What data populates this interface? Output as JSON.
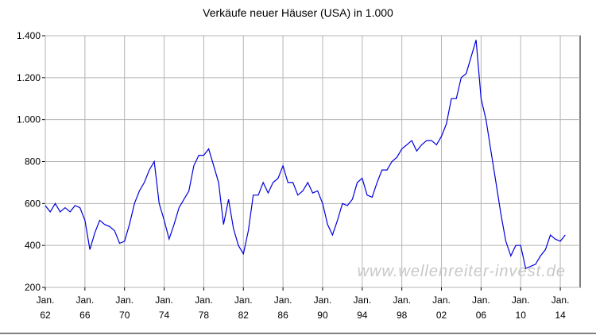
{
  "chart_data": {
    "type": "line",
    "title": "Verkäufe neuer Häuser (USA) in 1.000",
    "annotations": [
      "www.wellenreiter-invest.de"
    ],
    "x": [
      1962,
      1962.5,
      1963,
      1963.5,
      1964,
      1964.5,
      1965,
      1965.5,
      1966,
      1966.5,
      1967,
      1967.5,
      1968,
      1968.5,
      1969,
      1969.5,
      1970,
      1970.5,
      1971,
      1971.5,
      1972,
      1972.5,
      1973,
      1973.5,
      1974,
      1974.5,
      1975,
      1975.5,
      1976,
      1976.5,
      1977,
      1977.5,
      1978,
      1978.5,
      1979,
      1979.5,
      1980,
      1980.5,
      1981,
      1981.5,
      1982,
      1982.5,
      1983,
      1983.5,
      1984,
      1984.5,
      1985,
      1985.5,
      1986,
      1986.5,
      1987,
      1987.5,
      1988,
      1988.5,
      1989,
      1989.5,
      1990,
      1990.5,
      1991,
      1991.5,
      1992,
      1992.5,
      1993,
      1993.5,
      1994,
      1994.5,
      1995,
      1995.5,
      1996,
      1996.5,
      1997,
      1997.5,
      1998,
      1998.5,
      1999,
      1999.5,
      2000,
      2000.5,
      2001,
      2001.5,
      2002,
      2002.5,
      2003,
      2003.5,
      2004,
      2004.5,
      2005,
      2005.5,
      2006,
      2006.5,
      2007,
      2007.5,
      2008,
      2008.5,
      2009,
      2009.5,
      2010,
      2010.5,
      2011,
      2011.5,
      2012,
      2012.5,
      2013,
      2013.5,
      2014,
      2014.5
    ],
    "series": [
      {
        "name": "Verkäufe",
        "color": "#0000dd",
        "values": [
          590,
          560,
          600,
          560,
          580,
          560,
          590,
          580,
          520,
          380,
          460,
          520,
          500,
          490,
          470,
          410,
          420,
          500,
          600,
          660,
          700,
          760,
          800,
          600,
          520,
          430,
          500,
          580,
          620,
          660,
          780,
          830,
          830,
          860,
          780,
          700,
          500,
          620,
          480,
          400,
          360,
          470,
          640,
          640,
          700,
          650,
          700,
          720,
          780,
          700,
          700,
          640,
          660,
          700,
          650,
          660,
          600,
          500,
          450,
          520,
          600,
          590,
          620,
          700,
          720,
          640,
          630,
          700,
          760,
          760,
          800,
          820,
          860,
          880,
          900,
          850,
          880,
          900,
          900,
          880,
          920,
          980,
          1100,
          1100,
          1200,
          1220,
          1300,
          1380,
          1100,
          1000,
          850,
          700,
          550,
          420,
          350,
          400,
          400,
          290,
          300,
          310,
          350,
          380,
          450,
          430,
          420,
          450
        ]
      }
    ],
    "xlim": [
      1962,
      2016
    ],
    "xticks": [
      {
        "value": 1962,
        "label": "Jan. 62"
      },
      {
        "value": 1966,
        "label": "Jan. 66"
      },
      {
        "value": 1970,
        "label": "Jan. 70"
      },
      {
        "value": 1974,
        "label": "Jan. 74"
      },
      {
        "value": 1978,
        "label": "Jan. 78"
      },
      {
        "value": 1982,
        "label": "Jan. 82"
      },
      {
        "value": 1986,
        "label": "Jan. 86"
      },
      {
        "value": 1990,
        "label": "Jan. 90"
      },
      {
        "value": 1994,
        "label": "Jan. 94"
      },
      {
        "value": 1998,
        "label": "Jan. 98"
      },
      {
        "value": 2002,
        "label": "Jan. 02"
      },
      {
        "value": 2006,
        "label": "Jan. 06"
      },
      {
        "value": 2010,
        "label": "Jan. 10"
      },
      {
        "value": 2014,
        "label": "Jan. 14"
      }
    ],
    "ylim": [
      200,
      1400
    ],
    "yticks": [
      200,
      400,
      600,
      800,
      {
        "value": 1000,
        "label": "1.000"
      },
      {
        "value": 1200,
        "label": "1.200"
      },
      {
        "value": 1400,
        "label": "1.400"
      }
    ],
    "grid": true
  }
}
